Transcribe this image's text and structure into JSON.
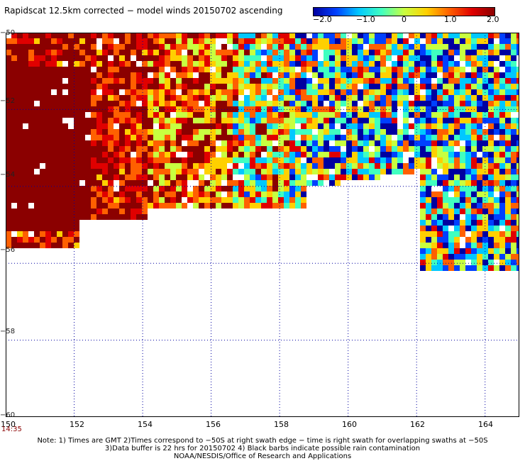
{
  "title": "Rapidscat 12.5km corrected − model winds 20150702 ascending",
  "colorbar": {
    "ticks": [
      "−2.0",
      "−1.0",
      "0",
      "1.0",
      "2.0"
    ],
    "tick_values": [
      -2.0,
      -1.0,
      0,
      1.0,
      2.0
    ],
    "range": [
      -2.0,
      2.0
    ],
    "colors": [
      "#0000a0",
      "#0040ff",
      "#00c8ff",
      "#40ffc0",
      "#c8ff40",
      "#ffd000",
      "#ff6000",
      "#e00000",
      "#8b0000"
    ]
  },
  "map": {
    "lon_range": [
      150,
      165
    ],
    "lat_range": [
      -60,
      -50
    ],
    "lon_ticks": [
      "150",
      "152",
      "154",
      "156",
      "158",
      "160",
      "162",
      "164"
    ],
    "lat_ticks": [
      "−50",
      "−52",
      "−54",
      "−56",
      "−58",
      "−60"
    ],
    "grid": "dotted",
    "land_color": "#8b0000"
  },
  "time_label": "14:35",
  "notes": [
    "Note: 1) Times are GMT 2)Times correspond to −50S at right swath edge − time is right swath for overlapping swaths at −50S",
    "3)Data buffer is 22 hrs for 20150702 4) Black barbs indicate possible rain contamination",
    "NOAA/NESDIS/Office of Research and Applications"
  ]
}
